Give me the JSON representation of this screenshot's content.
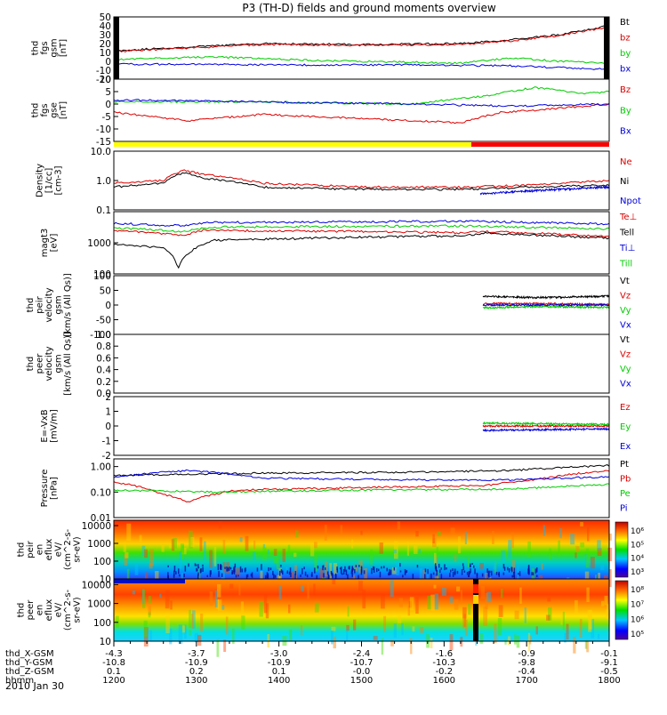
{
  "title": "P3 (TH-D) fields and ground moments overview",
  "colors": {
    "black": "#000000",
    "red": "#dd0000",
    "green": "#00cc00",
    "blue": "#0000dd",
    "yellow": "#ffff00",
    "bar_red": "#ff0000"
  },
  "chart_data": [
    {
      "type": "line",
      "id": "fgs_gsm",
      "ylabel": [
        "thd",
        "fgs",
        "gsm",
        "[nT]"
      ],
      "yticks": [
        "50",
        "40",
        "30",
        "20",
        "10",
        "0",
        "-10",
        "-20"
      ],
      "ylim": [
        -20,
        50
      ],
      "series": [
        {
          "name": "Bt",
          "color": "#000000",
          "points": [
            [
              0,
              12
            ],
            [
              0.15,
              16
            ],
            [
              0.3,
              20
            ],
            [
              0.5,
              19
            ],
            [
              0.7,
              20
            ],
            [
              0.8,
              24
            ],
            [
              0.9,
              30
            ],
            [
              1,
              40
            ]
          ]
        },
        {
          "name": "bz",
          "color": "#dd0000",
          "points": [
            [
              0,
              11
            ],
            [
              0.15,
              15
            ],
            [
              0.3,
              19
            ],
            [
              0.5,
              18
            ],
            [
              0.7,
              19
            ],
            [
              0.8,
              23
            ],
            [
              0.9,
              29
            ],
            [
              1,
              39
            ]
          ]
        },
        {
          "name": "by",
          "color": "#00cc00",
          "points": [
            [
              0,
              2
            ],
            [
              0.2,
              5
            ],
            [
              0.4,
              1
            ],
            [
              0.7,
              -2
            ],
            [
              0.8,
              4
            ],
            [
              0.9,
              0
            ],
            [
              1,
              -2
            ]
          ]
        },
        {
          "name": "bx",
          "color": "#0000dd",
          "points": [
            [
              0,
              -3
            ],
            [
              0.3,
              -4
            ],
            [
              0.6,
              -4
            ],
            [
              0.8,
              -5
            ],
            [
              1,
              -9
            ]
          ]
        }
      ]
    },
    {
      "type": "line",
      "id": "fgs_gse",
      "ylabel": [
        "thd",
        "fgs",
        "gse",
        "[nT]"
      ],
      "yticks": [
        "10",
        "5",
        "0",
        "-5",
        "-10",
        "-15"
      ],
      "ylim": [
        -18,
        12
      ],
      "series": [
        {
          "name": "Bz",
          "color": "#dd0000",
          "points": [
            [
              0,
              -4
            ],
            [
              0.15,
              -8
            ],
            [
              0.3,
              -5
            ],
            [
              0.5,
              -7
            ],
            [
              0.7,
              -9
            ],
            [
              0.78,
              -4
            ],
            [
              0.85,
              -3
            ],
            [
              1,
              0
            ]
          ]
        },
        {
          "name": "By",
          "color": "#00cc00",
          "points": [
            [
              0,
              1
            ],
            [
              0.3,
              1
            ],
            [
              0.6,
              0
            ],
            [
              0.75,
              4
            ],
            [
              0.85,
              8
            ],
            [
              0.95,
              5
            ],
            [
              1,
              6
            ]
          ]
        },
        {
          "name": "Bx",
          "color": "#0000dd",
          "points": [
            [
              0,
              2
            ],
            [
              0.3,
              1
            ],
            [
              0.6,
              0
            ],
            [
              0.8,
              -1
            ],
            [
              1,
              0
            ]
          ]
        }
      ]
    },
    {
      "type": "line",
      "id": "density",
      "scale": "log",
      "ylabel": [
        "Density",
        "[1/cc]",
        "[cm-3]"
      ],
      "yticks": [
        "10.0",
        "1.0",
        "0.1"
      ],
      "ylim": [
        0.1,
        10
      ],
      "series": [
        {
          "name": "Ne",
          "color": "#dd0000",
          "points": [
            [
              0,
              0.8
            ],
            [
              0.1,
              1.0
            ],
            [
              0.14,
              2.2
            ],
            [
              0.18,
              1.6
            ],
            [
              0.3,
              0.8
            ],
            [
              0.5,
              0.6
            ],
            [
              0.7,
              0.6
            ],
            [
              0.85,
              0.7
            ],
            [
              1,
              1.0
            ]
          ]
        },
        {
          "name": "Ni",
          "color": "#000000",
          "points": [
            [
              0,
              0.6
            ],
            [
              0.1,
              0.8
            ],
            [
              0.14,
              1.8
            ],
            [
              0.18,
              1.2
            ],
            [
              0.3,
              0.6
            ],
            [
              0.5,
              0.5
            ],
            [
              0.7,
              0.5
            ],
            [
              0.85,
              0.6
            ],
            [
              1,
              0.7
            ]
          ]
        },
        {
          "name": "Npot",
          "color": "#0000dd",
          "points": [
            [
              0.74,
              0.35
            ],
            [
              0.85,
              0.45
            ],
            [
              1,
              0.6
            ]
          ]
        }
      ]
    },
    {
      "type": "line",
      "id": "temperature",
      "scale": "log",
      "ylabel": [
        "magt3",
        "[eV]"
      ],
      "yticks": [
        "1000",
        "100"
      ],
      "ylim": [
        100,
        10000
      ],
      "series": [
        {
          "name": "Te⊥",
          "color": "#dd0000",
          "points": [
            [
              0,
              2500
            ],
            [
              0.14,
              1700
            ],
            [
              0.18,
              2500
            ],
            [
              0.5,
              2300
            ],
            [
              0.7,
              2100
            ],
            [
              0.75,
              2300
            ],
            [
              1,
              1600
            ]
          ]
        },
        {
          "name": "Tell",
          "color": "#000000",
          "points": [
            [
              0,
              900
            ],
            [
              0.1,
              700
            ],
            [
              0.13,
              150
            ],
            [
              0.2,
              1200
            ],
            [
              0.5,
              1500
            ],
            [
              0.7,
              1700
            ],
            [
              0.75,
              2000
            ],
            [
              1,
              1400
            ]
          ]
        },
        {
          "name": "Ti⊥",
          "color": "#0000dd",
          "points": [
            [
              0,
              4200
            ],
            [
              0.14,
              3500
            ],
            [
              0.2,
              4500
            ],
            [
              0.5,
              4700
            ],
            [
              0.7,
              5000
            ],
            [
              1,
              4000
            ]
          ]
        },
        {
          "name": "Till",
          "color": "#00cc00",
          "points": [
            [
              0,
              3000
            ],
            [
              0.14,
              2300
            ],
            [
              0.2,
              3200
            ],
            [
              0.5,
              3400
            ],
            [
              0.7,
              3500
            ],
            [
              1,
              2800
            ]
          ]
        }
      ]
    },
    {
      "type": "line",
      "id": "peir_velocity",
      "ylabel": [
        "thd",
        "peir",
        "velocity",
        "gsm",
        "[km/s (All Qs)]"
      ],
      "yticks": [
        "100",
        "50",
        "0",
        "-50",
        "-100"
      ],
      "ylim": [
        -100,
        100
      ],
      "series": [
        {
          "name": "Vt",
          "color": "#000000",
          "points": [
            [
              0.745,
              30
            ],
            [
              0.85,
              25
            ],
            [
              1,
              30
            ]
          ]
        },
        {
          "name": "Vz",
          "color": "#dd0000",
          "points": [
            [
              0.745,
              5
            ],
            [
              0.85,
              5
            ],
            [
              1,
              2
            ]
          ]
        },
        {
          "name": "Vy",
          "color": "#00cc00",
          "points": [
            [
              0.745,
              -10
            ],
            [
              0.85,
              -5
            ],
            [
              1,
              -8
            ]
          ]
        },
        {
          "name": "Vx",
          "color": "#0000dd",
          "points": [
            [
              0.745,
              0
            ],
            [
              0.85,
              0
            ],
            [
              1,
              0
            ]
          ]
        }
      ]
    },
    {
      "type": "line",
      "id": "peer_velocity",
      "ylabel": [
        "thd",
        "peer",
        "velocity",
        "gsm",
        "[km/s (All Qs)]"
      ],
      "yticks": [
        "1.0",
        "0.8",
        "0.6",
        "0.4",
        "0.2",
        "0.0"
      ],
      "ylim": [
        0,
        1
      ],
      "series": [
        {
          "name": "Vt",
          "color": "#000000",
          "points": []
        },
        {
          "name": "Vz",
          "color": "#dd0000",
          "points": []
        },
        {
          "name": "Vy",
          "color": "#00cc00",
          "points": []
        },
        {
          "name": "Vx",
          "color": "#0000dd",
          "points": []
        }
      ]
    },
    {
      "type": "line",
      "id": "efield",
      "ylabel": [
        "E=-VxB",
        "[mV/m]"
      ],
      "yticks": [
        "2",
        "1",
        "0",
        "-1",
        "-2"
      ],
      "ylim": [
        -2,
        2
      ],
      "series": [
        {
          "name": "Ez",
          "color": "#dd0000",
          "points": [
            [
              0.745,
              0
            ],
            [
              1,
              0
            ]
          ]
        },
        {
          "name": "Ey",
          "color": "#00cc00",
          "points": [
            [
              0.745,
              0.2
            ],
            [
              1,
              0.1
            ]
          ]
        },
        {
          "name": "Ex",
          "color": "#0000dd",
          "points": [
            [
              0.745,
              -0.3
            ],
            [
              1,
              -0.2
            ]
          ]
        }
      ]
    },
    {
      "type": "line",
      "id": "pressure",
      "scale": "log",
      "ylabel": [
        "Pressure",
        "[nPa]"
      ],
      "yticks": [
        "1.00",
        "0.10",
        "0.01"
      ],
      "ylim": [
        0.01,
        2
      ],
      "series": [
        {
          "name": "Pt",
          "color": "#000000",
          "points": [
            [
              0,
              0.45
            ],
            [
              0.3,
              0.55
            ],
            [
              0.6,
              0.6
            ],
            [
              0.8,
              0.7
            ],
            [
              1,
              1.1
            ]
          ]
        },
        {
          "name": "Pb",
          "color": "#dd0000",
          "points": [
            [
              0,
              0.25
            ],
            [
              0.1,
              0.08
            ],
            [
              0.15,
              0.04
            ],
            [
              0.25,
              0.12
            ],
            [
              0.5,
              0.15
            ],
            [
              0.75,
              0.18
            ],
            [
              0.85,
              0.3
            ],
            [
              1,
              0.7
            ]
          ]
        },
        {
          "name": "Pe",
          "color": "#00cc00",
          "points": [
            [
              0,
              0.12
            ],
            [
              0.2,
              0.1
            ],
            [
              0.5,
              0.12
            ],
            [
              0.8,
              0.13
            ],
            [
              1,
              0.2
            ]
          ]
        },
        {
          "name": "Pi",
          "color": "#0000dd",
          "points": [
            [
              0,
              0.4
            ],
            [
              0.15,
              0.7
            ],
            [
              0.3,
              0.35
            ],
            [
              0.6,
              0.3
            ],
            [
              0.8,
              0.3
            ],
            [
              1,
              0.4
            ]
          ]
        }
      ]
    },
    {
      "type": "heatmap",
      "id": "peir_en_eflux",
      "scale": "log",
      "ylabel": [
        "thd",
        "peir",
        "en",
        "eflux",
        "eV/",
        "(cm^2-s-",
        "sr-eV)"
      ],
      "yticks": [
        "10000",
        "1000",
        "100",
        "10"
      ],
      "ylim": [
        10,
        20000
      ],
      "colorbar": {
        "ticks": [
          "10⁶",
          "10⁵",
          "10⁴",
          "10³"
        ]
      }
    },
    {
      "type": "heatmap",
      "id": "peer_en_eflux",
      "scale": "log",
      "ylabel": [
        "thd",
        "peer",
        "en",
        "eflux",
        "eV/",
        "(cm^2-s-",
        "sr-eV)"
      ],
      "yticks": [
        "10000",
        "1000",
        "100",
        "10"
      ],
      "ylim": [
        10,
        20000
      ],
      "colorbar": {
        "ticks": [
          "10⁸",
          "10⁷",
          "10⁶",
          "10⁵"
        ]
      }
    }
  ],
  "footer": {
    "rows": [
      {
        "label": "thd_X-GSM",
        "values": [
          "-4.3",
          "-3.7",
          "-3.0",
          "-2.4",
          "-1.6",
          "-0.9",
          "-0.1"
        ]
      },
      {
        "label": "thd_Y-GSM",
        "values": [
          "-10.8",
          "-10.9",
          "-10.9",
          "-10.7",
          "-10.3",
          "-9.8",
          "-9.1"
        ]
      },
      {
        "label": "thd_Z-GSM",
        "values": [
          "0.1",
          "0.2",
          "0.1",
          "-0.0",
          "-0.2",
          "-0.4",
          "-0.5"
        ]
      },
      {
        "label": "hhmm",
        "values": [
          "1200",
          "1300",
          "1400",
          "1500",
          "1600",
          "1700",
          "1800"
        ]
      }
    ],
    "date": "2010 Jan 30"
  }
}
